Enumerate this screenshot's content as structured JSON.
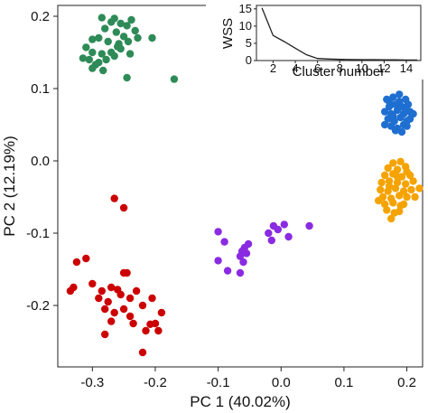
{
  "chart_data": [
    {
      "type": "scatter",
      "xlabel": "PC 1 (40.02%)",
      "ylabel": "PC 2 (12.19%)",
      "xlim": [
        -0.355,
        0.225
      ],
      "ylim": [
        -0.285,
        0.215
      ],
      "xticks": [
        -0.3,
        -0.2,
        -0.1,
        0.0,
        0.1,
        0.2
      ],
      "xtick_labels": [
        "-0.3",
        "-0.2",
        "-0.1",
        "0.0",
        "0.1",
        "0.2"
      ],
      "yticks": [
        0.2,
        0.1,
        0.0,
        -0.1,
        -0.2
      ],
      "ytick_labels": [
        "0.2",
        "0.1",
        "0.0",
        "-0.1",
        "-0.2"
      ],
      "grid": false,
      "series": [
        {
          "color": "#2e8b57",
          "points": [
            [
              -0.285,
              0.198
            ],
            [
              -0.27,
              0.192
            ],
            [
              -0.265,
              0.197
            ],
            [
              -0.255,
              0.19
            ],
            [
              -0.245,
              0.187
            ],
            [
              -0.238,
              0.195
            ],
            [
              -0.28,
              0.183
            ],
            [
              -0.262,
              0.178
            ],
            [
              -0.25,
              0.172
            ],
            [
              -0.232,
              0.18
            ],
            [
              -0.3,
              0.168
            ],
            [
              -0.29,
              0.17
            ],
            [
              -0.275,
              0.165
            ],
            [
              -0.258,
              0.162
            ],
            [
              -0.243,
              0.165
            ],
            [
              -0.228,
              0.17
            ],
            [
              -0.205,
              0.17
            ],
            [
              -0.31,
              0.157
            ],
            [
              -0.3,
              0.15
            ],
            [
              -0.285,
              0.148
            ],
            [
              -0.27,
              0.15
            ],
            [
              -0.255,
              0.155
            ],
            [
              -0.24,
              0.148
            ],
            [
              -0.305,
              0.14
            ],
            [
              -0.315,
              0.142
            ],
            [
              -0.29,
              0.136
            ],
            [
              -0.278,
              0.14
            ],
            [
              -0.265,
              0.145
            ],
            [
              -0.3,
              0.128
            ],
            [
              -0.283,
              0.125
            ],
            [
              -0.245,
              0.115
            ],
            [
              -0.17,
              0.113
            ],
            [
              -0.295,
              0.133
            ],
            [
              -0.26,
              0.158
            ]
          ]
        },
        {
          "color": "#1f6fd1",
          "points": [
            [
              0.168,
              0.085
            ],
            [
              0.178,
              0.088
            ],
            [
              0.188,
              0.082
            ],
            [
              0.198,
              0.085
            ],
            [
              0.172,
              0.075
            ],
            [
              0.182,
              0.078
            ],
            [
              0.192,
              0.075
            ],
            [
              0.202,
              0.078
            ],
            [
              0.165,
              0.068
            ],
            [
              0.175,
              0.065
            ],
            [
              0.185,
              0.07
            ],
            [
              0.195,
              0.065
            ],
            [
              0.205,
              0.068
            ],
            [
              0.17,
              0.058
            ],
            [
              0.18,
              0.055
            ],
            [
              0.19,
              0.06
            ],
            [
              0.2,
              0.055
            ],
            [
              0.175,
              0.048
            ],
            [
              0.185,
              0.045
            ],
            [
              0.195,
              0.05
            ],
            [
              0.205,
              0.058
            ],
            [
              0.165,
              0.05
            ],
            [
              0.21,
              0.065
            ],
            [
              0.188,
              0.092
            ],
            [
              0.178,
              0.062
            ],
            [
              0.198,
              0.072
            ],
            [
              0.172,
              0.082
            ],
            [
              0.192,
              0.04
            ],
            [
              0.182,
              0.042
            ],
            [
              0.2,
              0.048
            ]
          ]
        },
        {
          "color": "#f5a300",
          "points": [
            [
              0.178,
              -0.003
            ],
            [
              0.19,
              -0.001
            ],
            [
              0.17,
              -0.01
            ],
            [
              0.185,
              -0.012
            ],
            [
              0.198,
              -0.008
            ],
            [
              0.165,
              -0.02
            ],
            [
              0.178,
              -0.018
            ],
            [
              0.192,
              -0.022
            ],
            [
              0.205,
              -0.02
            ],
            [
              0.16,
              -0.03
            ],
            [
              0.172,
              -0.028
            ],
            [
              0.185,
              -0.03
            ],
            [
              0.198,
              -0.032
            ],
            [
              0.21,
              -0.028
            ],
            [
              0.158,
              -0.04
            ],
            [
              0.17,
              -0.042
            ],
            [
              0.182,
              -0.038
            ],
            [
              0.195,
              -0.042
            ],
            [
              0.207,
              -0.04
            ],
            [
              0.162,
              -0.05
            ],
            [
              0.175,
              -0.052
            ],
            [
              0.188,
              -0.048
            ],
            [
              0.2,
              -0.05
            ],
            [
              0.165,
              -0.06
            ],
            [
              0.178,
              -0.058
            ],
            [
              0.19,
              -0.062
            ],
            [
              0.168,
              -0.068
            ],
            [
              0.18,
              -0.072
            ],
            [
              0.175,
              -0.08
            ],
            [
              0.22,
              -0.038
            ],
            [
              0.213,
              -0.05
            ],
            [
              0.155,
              -0.055
            ],
            [
              0.185,
              -0.022
            ],
            [
              0.195,
              -0.06
            ],
            [
              0.172,
              -0.035
            ],
            [
              0.2,
              -0.015
            ],
            [
              0.188,
              -0.07
            ]
          ]
        },
        {
          "color": "#8a2be2",
          "points": [
            [
              -0.1,
              -0.098
            ],
            [
              -0.09,
              -0.112
            ],
            [
              -0.058,
              -0.12
            ],
            [
              -0.052,
              -0.115
            ],
            [
              -0.062,
              -0.125
            ],
            [
              -0.055,
              -0.128
            ],
            [
              -0.065,
              -0.132
            ],
            [
              -0.06,
              -0.14
            ],
            [
              -0.1,
              -0.138
            ],
            [
              -0.085,
              -0.152
            ],
            [
              -0.065,
              -0.155
            ],
            [
              -0.02,
              -0.1
            ],
            [
              -0.012,
              -0.09
            ],
            [
              -0.005,
              -0.095
            ],
            [
              0.005,
              -0.088
            ],
            [
              0.012,
              -0.105
            ],
            [
              0.045,
              -0.09
            ],
            [
              -0.015,
              -0.11
            ]
          ]
        },
        {
          "color": "#cc0000",
          "points": [
            [
              -0.265,
              -0.052
            ],
            [
              -0.25,
              -0.065
            ],
            [
              -0.335,
              -0.18
            ],
            [
              -0.325,
              -0.14
            ],
            [
              -0.31,
              -0.135
            ],
            [
              -0.3,
              -0.17
            ],
            [
              -0.285,
              -0.18
            ],
            [
              -0.27,
              -0.175
            ],
            [
              -0.26,
              -0.178
            ],
            [
              -0.29,
              -0.19
            ],
            [
              -0.275,
              -0.195
            ],
            [
              -0.255,
              -0.185
            ],
            [
              -0.24,
              -0.19
            ],
            [
              -0.25,
              -0.155
            ],
            [
              -0.245,
              -0.155
            ],
            [
              -0.23,
              -0.18
            ],
            [
              -0.205,
              -0.19
            ],
            [
              -0.28,
              -0.205
            ],
            [
              -0.265,
              -0.21
            ],
            [
              -0.25,
              -0.205
            ],
            [
              -0.24,
              -0.215
            ],
            [
              -0.22,
              -0.2
            ],
            [
              -0.2,
              -0.225
            ],
            [
              -0.195,
              -0.235
            ],
            [
              -0.19,
              -0.21
            ],
            [
              -0.27,
              -0.222
            ],
            [
              -0.235,
              -0.225
            ],
            [
              -0.28,
              -0.24
            ],
            [
              -0.215,
              -0.235
            ],
            [
              -0.22,
              -0.265
            ],
            [
              -0.33,
              -0.175
            ],
            [
              -0.208,
              -0.226
            ]
          ]
        }
      ]
    },
    {
      "type": "line",
      "xlabel": "Cluster number",
      "ylabel": "WSS",
      "xlim": [
        0.5,
        15.3
      ],
      "ylim": [
        0,
        16
      ],
      "xticks": [
        2,
        4,
        6,
        8,
        10,
        12,
        14
      ],
      "xtick_labels": [
        "2",
        "4",
        "6",
        "8",
        "10",
        "12",
        "14"
      ],
      "yticks": [
        0,
        5,
        10,
        15
      ],
      "ytick_labels": [
        "0",
        "5",
        "10",
        "15"
      ],
      "x": [
        1,
        2,
        3,
        4,
        5,
        6,
        7,
        8,
        9,
        10,
        11,
        12,
        13,
        14,
        15
      ],
      "y": [
        15.3,
        7.3,
        5.5,
        3.6,
        1.7,
        0.6,
        0.45,
        0.35,
        0.3,
        0.25,
        0.25,
        0.2,
        0.2,
        0.15,
        0.15
      ],
      "line_color": "#222222"
    }
  ]
}
